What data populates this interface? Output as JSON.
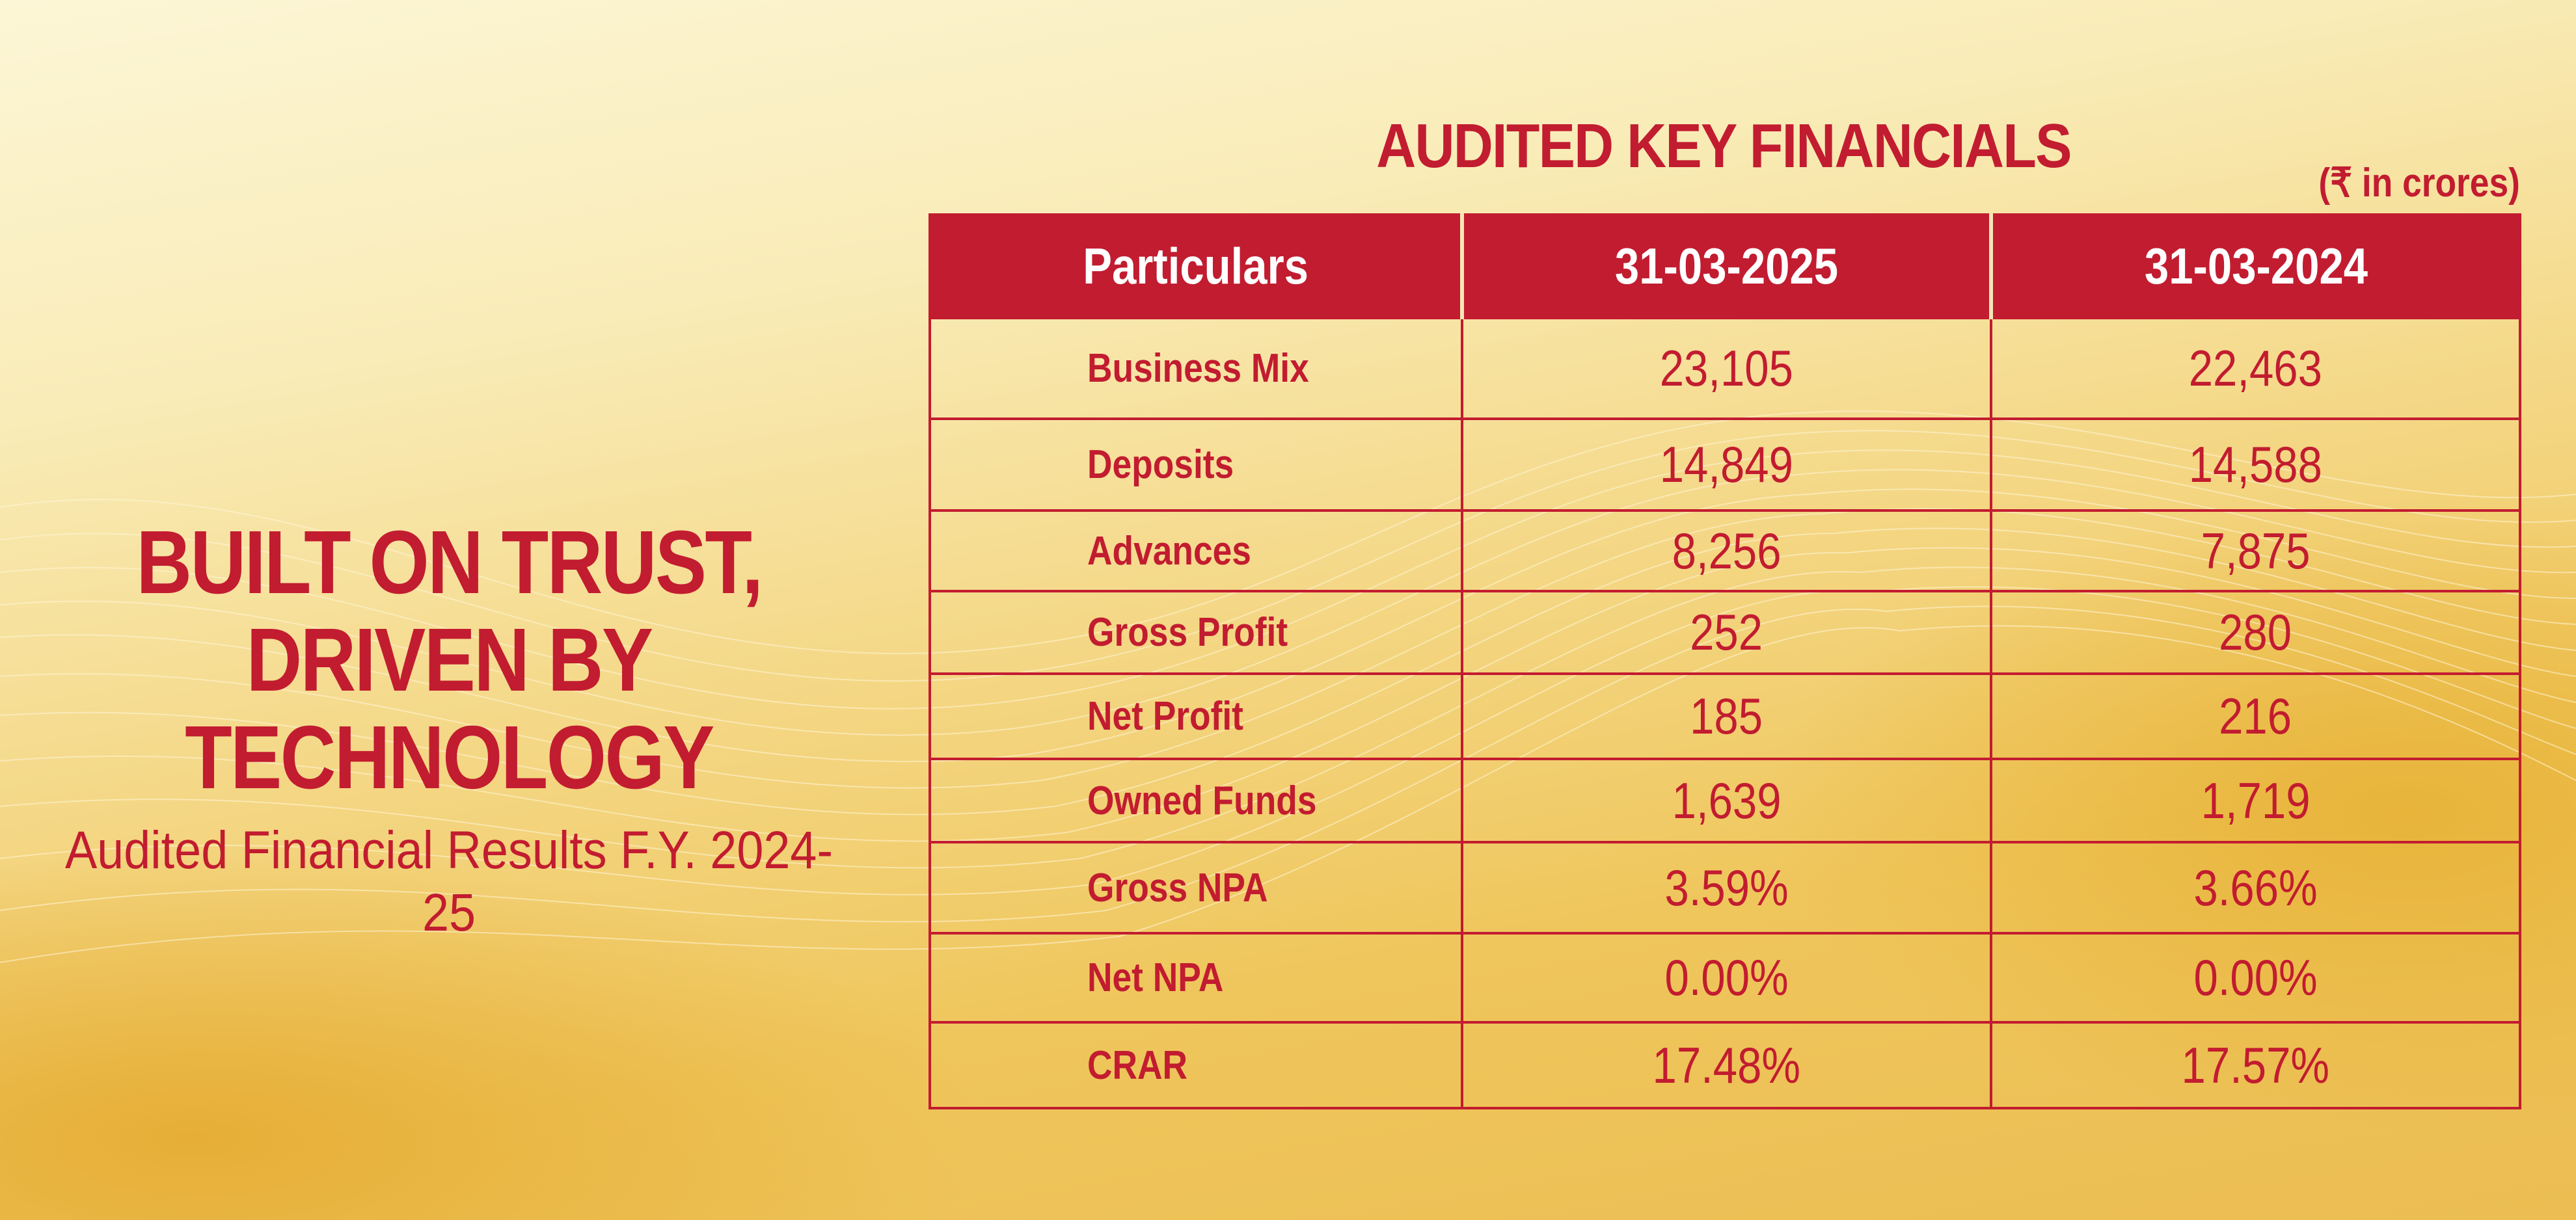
{
  "headline": {
    "line1": "BUILT ON TRUST,",
    "line2": "DRIVEN BY TECHNOLOGY",
    "subtitle": "Audited Financial Results F.Y. 2024-25"
  },
  "table": {
    "title": "AUDITED KEY FINANCIALS",
    "unit_note": "(₹ in crores)",
    "headers": [
      "Particulars",
      "31-03-2025",
      "31-03-2024"
    ],
    "rows": [
      {
        "label": "Business Mix",
        "fy2025": "23,105",
        "fy2024": "22,463"
      },
      {
        "label": "Deposits",
        "fy2025": "14,849",
        "fy2024": "14,588"
      },
      {
        "label": "Advances",
        "fy2025": "8,256",
        "fy2024": "7,875"
      },
      {
        "label": "Gross Profit",
        "fy2025": "252",
        "fy2024": "280"
      },
      {
        "label": "Net Profit",
        "fy2025": "185",
        "fy2024": "216"
      },
      {
        "label": "Owned Funds",
        "fy2025": "1,639",
        "fy2024": "1,719"
      },
      {
        "label": "Gross NPA",
        "fy2025": "3.59%",
        "fy2024": "3.66%"
      },
      {
        "label": "Net NPA",
        "fy2025": "0.00%",
        "fy2024": "0.00%"
      },
      {
        "label": "CRAR",
        "fy2025": "17.48%",
        "fy2024": "17.57%"
      }
    ]
  },
  "colors": {
    "brand_red": "#c21c30",
    "gold": "#efc65c",
    "cream": "#fcf6d6"
  }
}
